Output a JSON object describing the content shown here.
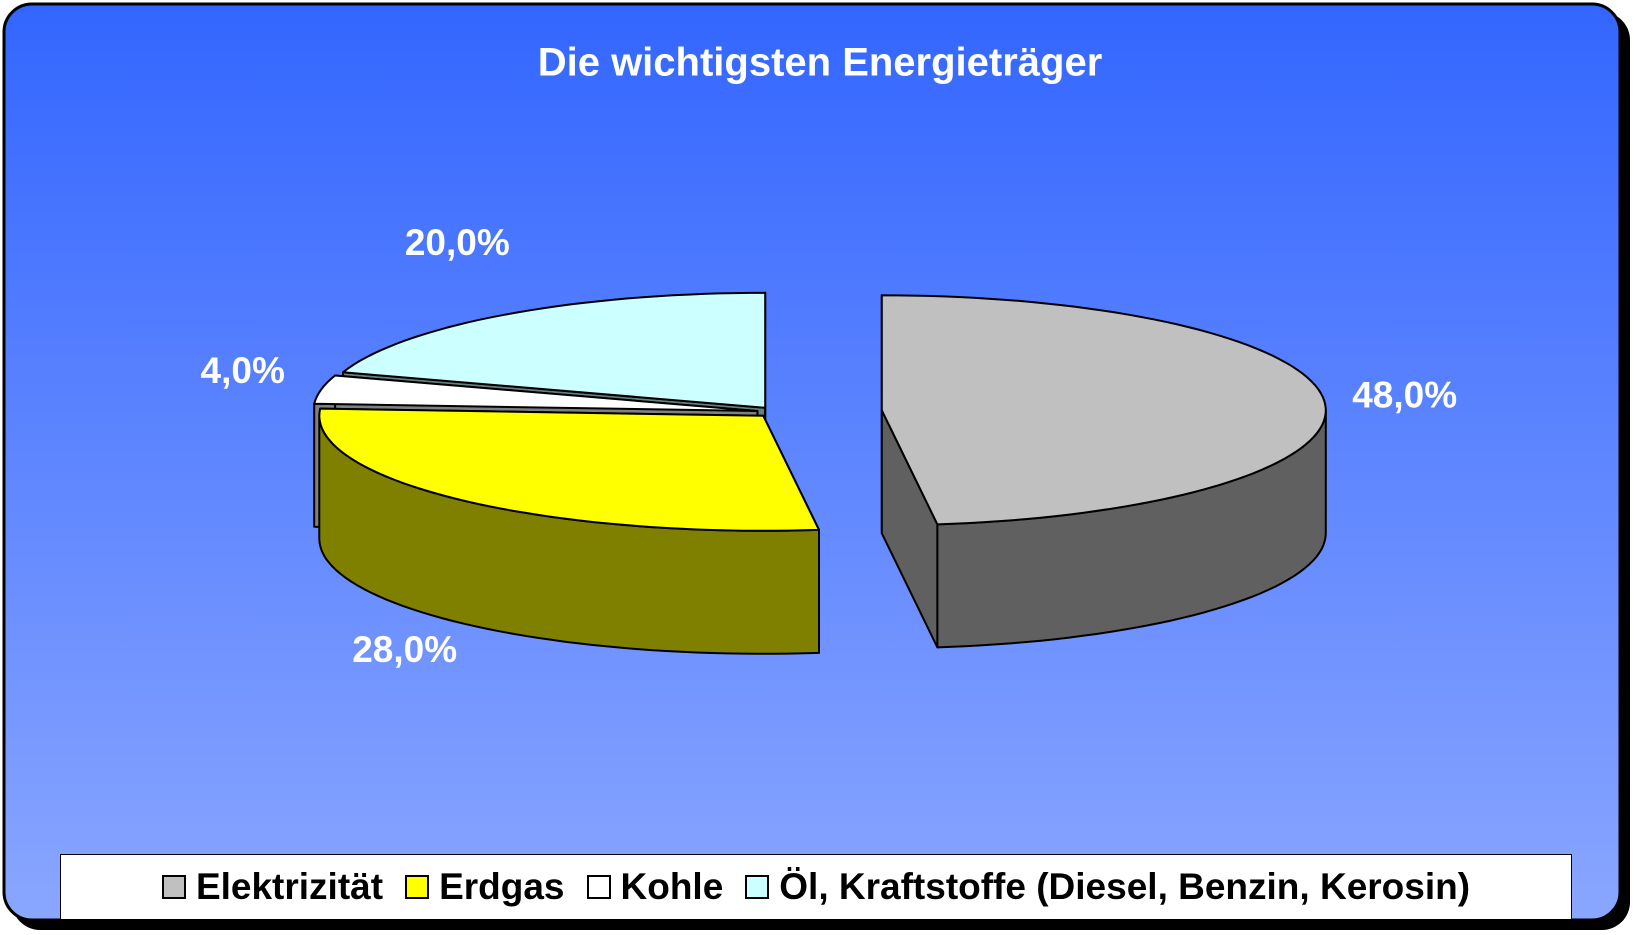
{
  "chart_data": {
    "type": "pie",
    "title": "Die wichtigsten Energieträger",
    "categories": [
      "Elektrizität",
      "Erdgas",
      "Kohle",
      "Öl, Kraftstoffe (Diesel, Benzin, Kerosin)"
    ],
    "values": [
      48,
      28,
      4,
      20
    ],
    "value_labels": [
      "48,0%",
      "28,0%",
      "4,0%",
      "20,0%"
    ],
    "colors": [
      "#c0c0c0",
      "#ffff00",
      "#ffffff",
      "#ccffff"
    ],
    "legend": "bottom"
  }
}
